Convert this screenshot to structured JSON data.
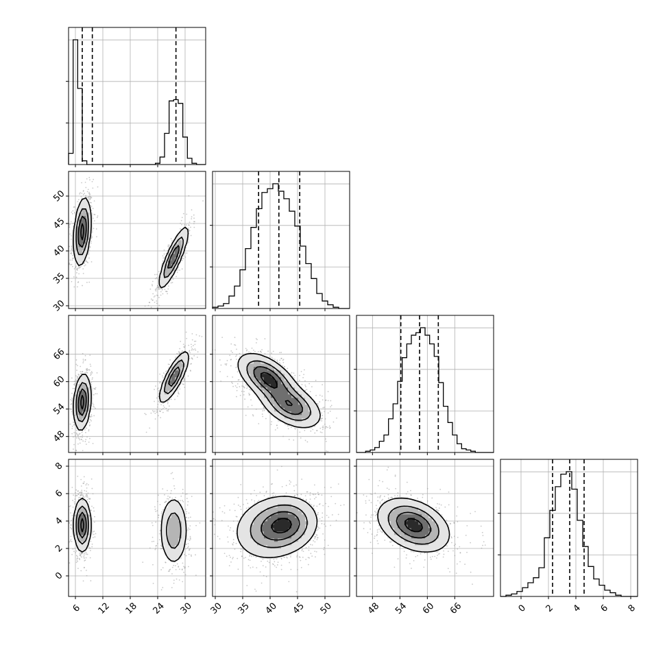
{
  "figure": {
    "type": "corner-plot",
    "dimensions": 4
  },
  "chart_data": {
    "type": "corner",
    "parameters": [
      {
        "xlim": [
          4.5,
          34.5
        ],
        "ticks": [
          6,
          12,
          18,
          24,
          30
        ],
        "tick_labels": [
          "6",
          "12",
          "18",
          "24",
          "30"
        ],
        "quantiles": [
          7.5,
          9.7,
          28.0
        ],
        "histogram": {
          "bins": [
            4.5,
            5.5,
            6.5,
            7.5,
            8.5,
            9.5,
            10.5,
            11.5,
            12.5,
            13.5,
            14.5,
            15.5,
            16.5,
            17.5,
            18.5,
            19.5,
            20.5,
            21.5,
            22.5,
            23.5,
            24.5,
            25.5,
            26.5,
            27.5,
            28.5,
            29.5,
            30.5,
            31.5,
            32.5,
            33.5,
            34.5
          ],
          "counts": [
            0.09,
            1.0,
            0.61,
            0.03,
            0.0,
            0.0,
            0.0,
            0.0,
            0.0,
            0.0,
            0.0,
            0.0,
            0.0,
            0.0,
            0.0,
            0.0,
            0.0,
            0.0,
            0.0,
            0.01,
            0.06,
            0.25,
            0.51,
            0.52,
            0.49,
            0.22,
            0.05,
            0.01,
            0.0,
            0.0
          ]
        }
      },
      {
        "xlim": [
          29.5,
          54.5
        ],
        "ticks": [
          30,
          35,
          40,
          45,
          50
        ],
        "tick_labels": [
          "30",
          "35",
          "40",
          "45",
          "50"
        ],
        "quantiles": [
          37.9,
          41.6,
          45.4
        ],
        "histogram": {
          "bins": [
            29.5,
            30.5,
            31.5,
            32.5,
            33.5,
            34.5,
            35.5,
            36.5,
            37.5,
            38.5,
            39.5,
            40.5,
            41.5,
            42.5,
            43.5,
            44.5,
            45.5,
            46.5,
            47.5,
            48.5,
            49.5,
            50.5,
            51.5,
            52.5,
            53.5,
            54.5
          ],
          "counts": [
            0.01,
            0.02,
            0.04,
            0.1,
            0.18,
            0.31,
            0.48,
            0.65,
            0.8,
            0.93,
            0.96,
            1.0,
            0.94,
            0.88,
            0.78,
            0.66,
            0.5,
            0.36,
            0.24,
            0.12,
            0.06,
            0.03,
            0.01,
            0.0,
            0.0
          ]
        }
      },
      {
        "xlim": [
          44.5,
          74.5
        ],
        "ticks": [
          48,
          54,
          60,
          66
        ],
        "tick_labels": [
          "48",
          "54",
          "60",
          "66"
        ],
        "quantiles": [
          54.2,
          58.3,
          62.4
        ],
        "histogram": {
          "bins": [
            44.5,
            45.5,
            46.5,
            47.5,
            48.5,
            49.5,
            50.5,
            51.5,
            52.5,
            53.5,
            54.5,
            55.5,
            56.5,
            57.5,
            58.5,
            59.5,
            60.5,
            61.5,
            62.5,
            63.5,
            64.5,
            65.5,
            66.5,
            67.5,
            68.5,
            69.5,
            70.5,
            71.5,
            72.5,
            73.5,
            74.5
          ],
          "counts": [
            0.0,
            0.0,
            0.01,
            0.02,
            0.04,
            0.09,
            0.14,
            0.27,
            0.39,
            0.57,
            0.76,
            0.87,
            0.94,
            0.96,
            1.0,
            0.94,
            0.87,
            0.77,
            0.56,
            0.37,
            0.24,
            0.14,
            0.07,
            0.03,
            0.02,
            0.01,
            0.0,
            0.0,
            0.0,
            0.0
          ]
        }
      },
      {
        "xlim": [
          -1.5,
          8.5
        ],
        "ticks": [
          0,
          2,
          4,
          6,
          8
        ],
        "tick_labels": [
          "0",
          "2",
          "4",
          "6",
          "8"
        ],
        "quantiles": [
          2.3,
          3.55,
          4.6
        ],
        "histogram": {
          "bins": [
            -1.5,
            -1.1,
            -0.7,
            -0.3,
            0.1,
            0.5,
            0.9,
            1.3,
            1.7,
            2.1,
            2.5,
            2.9,
            3.3,
            3.7,
            4.1,
            4.5,
            4.9,
            5.3,
            5.7,
            6.1,
            6.5,
            6.9,
            7.3,
            7.7,
            8.1,
            8.5
          ],
          "counts": [
            0.0,
            0.01,
            0.02,
            0.04,
            0.07,
            0.11,
            0.15,
            0.23,
            0.47,
            0.69,
            0.88,
            0.98,
            1.0,
            0.86,
            0.61,
            0.4,
            0.24,
            0.14,
            0.09,
            0.05,
            0.03,
            0.01,
            0.0,
            0.0,
            0.0
          ]
        }
      }
    ],
    "pairs": [
      {
        "x_param": 0,
        "y_param": 1,
        "modes": [
          {
            "cx": 7.5,
            "cy": 43.5,
            "sx": 0.9,
            "sy": 3.0,
            "rho": 0.3,
            "w": 1.0
          },
          {
            "cx": 27.5,
            "cy": 38.8,
            "sx": 1.6,
            "sy": 2.8,
            "rho": 0.85,
            "w": 0.85
          }
        ]
      },
      {
        "x_param": 0,
        "y_param": 2,
        "modes": [
          {
            "cx": 7.5,
            "cy": 55.5,
            "sx": 0.9,
            "sy": 3.0,
            "rho": 0.2,
            "w": 1.0
          },
          {
            "cx": 27.6,
            "cy": 61.0,
            "sx": 1.6,
            "sy": 2.8,
            "rho": 0.8,
            "w": 0.85
          }
        ]
      },
      {
        "x_param": 0,
        "y_param": 3,
        "modes": [
          {
            "cx": 7.5,
            "cy": 3.7,
            "sx": 0.9,
            "sy": 0.95,
            "rho": 0.0,
            "w": 1.0
          },
          {
            "cx": 27.5,
            "cy": 3.3,
            "sx": 1.5,
            "sy": 1.25,
            "rho": 0.0,
            "w": 0.6
          }
        ]
      },
      {
        "x_param": 1,
        "y_param": 2,
        "modes": [
          {
            "cx": 39.5,
            "cy": 60.8,
            "sx": 2.6,
            "sy": 2.6,
            "rho": -0.55,
            "w": 1.0
          },
          {
            "cx": 43.8,
            "cy": 54.7,
            "sx": 2.7,
            "sy": 2.4,
            "rho": -0.45,
            "w": 0.85
          }
        ]
      },
      {
        "x_param": 1,
        "y_param": 3,
        "modes": [
          {
            "cx": 40.5,
            "cy": 3.5,
            "sx": 3.5,
            "sy": 1.15,
            "rho": 0.15,
            "w": 1.0
          },
          {
            "cx": 43.5,
            "cy": 3.8,
            "sx": 2.6,
            "sy": 0.9,
            "rho": 0.1,
            "w": 0.7
          }
        ]
      },
      {
        "x_param": 2,
        "y_param": 3,
        "modes": [
          {
            "cx": 57.0,
            "cy": 3.7,
            "sx": 3.8,
            "sy": 0.95,
            "rho": -0.35,
            "w": 1.0
          }
        ]
      }
    ],
    "contour_levels": [
      0.12,
      0.35,
      0.62,
      0.88
    ],
    "grid": true,
    "histogram_style": "step",
    "quantile_style": "dashed",
    "colors": {
      "line": "#000000",
      "grid": "#b0b0b0",
      "scatter": "#9a9a9a"
    }
  }
}
